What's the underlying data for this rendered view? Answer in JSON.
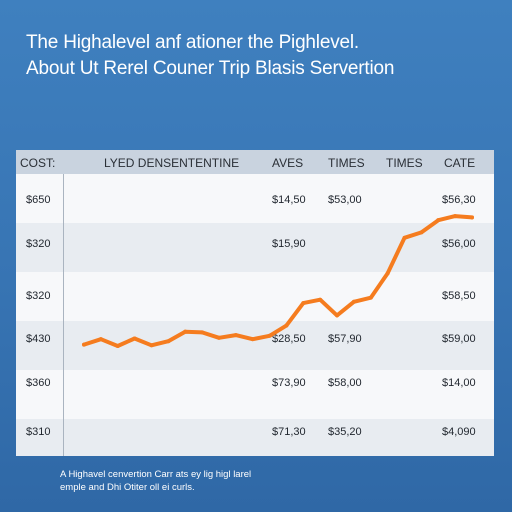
{
  "title": {
    "line1": "The Highalevel anf ationer the Pighlevel.",
    "line2": "About Ut Rerel Couner Trip Blasis Servertion"
  },
  "table": {
    "headers": [
      "COST:",
      "LYED DENSENTENTINE",
      "AVES",
      "TIMES",
      "TIMES",
      "CATE"
    ],
    "rows": [
      {
        "cost": "$650",
        "aves": "$14,50",
        "times": "$53,00",
        "cate": "$56,30"
      },
      {
        "cost": "$320",
        "aves": "$15,90",
        "times": "",
        "cate": "$56,00"
      },
      {
        "cost": "$320",
        "aves": "",
        "times": "",
        "cate": "$58,50"
      },
      {
        "cost": "$430",
        "aves": "$28,50",
        "times": "$57,90",
        "cate": "$59,00"
      },
      {
        "cost": "$360",
        "aves": "$73,90",
        "times": "$58,00",
        "cate": "$14,00"
      },
      {
        "cost": "$310",
        "aves": "$71,30",
        "times": "$35,20",
        "cate": "$4,090"
      }
    ]
  },
  "chart_data": {
    "type": "line",
    "title": "",
    "xlabel": "",
    "ylabel": "",
    "series": [
      {
        "color": "#f57c1f",
        "x": [
          0,
          1,
          2,
          3,
          4,
          5,
          6,
          7,
          8,
          9,
          10,
          11,
          12,
          13,
          14,
          15,
          16,
          17,
          18,
          19,
          20,
          21,
          22,
          23
        ],
        "y": [
          0.5,
          1.3,
          0.3,
          1.4,
          0.4,
          1.0,
          2.4,
          2.3,
          1.5,
          1.9,
          1.3,
          1.8,
          3.3,
          6.6,
          7.1,
          4.8,
          6.8,
          7.4,
          11.0,
          16.2,
          17.0,
          18.8,
          19.4,
          19.2
        ]
      }
    ],
    "ylim": [
      0,
      20
    ],
    "grid": true
  },
  "footnote": {
    "line1": "A Highavel cenvertion Carr ats ey lig higl larel",
    "line2": "emple and Dhi Otiter oll ei curls."
  }
}
